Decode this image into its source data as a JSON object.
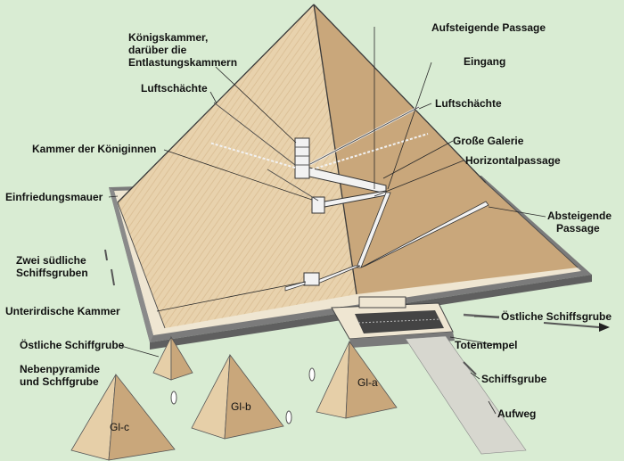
{
  "colors": {
    "background": "#d9ecd3",
    "pyramid_left": "#e6cfa8",
    "pyramid_right": "#c9a77b",
    "enclosure": "#efe6d2",
    "wall": "#7b7b7b"
  },
  "labels": {
    "koenigskammer_1": "Königskammer,",
    "koenigskammer_2": "darüber die",
    "koenigskammer_3": "Entlastungskammern",
    "aufsteigende_passage": "Aufsteigende Passage",
    "eingang": "Eingang",
    "luftschaechte_left": "Luftschächte",
    "luftschaechte_right": "Luftschächte",
    "kammer_koeniginnen": "Kammer der Königinnen",
    "grosse_galerie": "Große Galerie",
    "horizontalpassage": "Horizontalpassage",
    "einfriedungsmauer": "Einfriedungsmauer",
    "absteigende_1": "Absteigende",
    "absteigende_2": "Passage",
    "schiffsgruben_sued_1": "Zwei südliche",
    "schiffsgruben_sued_2": "Schiffsgruben",
    "unterirdische_kammer": "Unterirdische Kammer",
    "oestliche_schiffsgrube": "Östliche Schiffsgrube",
    "oestliche_schiffgrube": "Östliche Schiffgrube",
    "nebenpyramide_1": "Nebenpyramide",
    "nebenpyramide_2": "und Schffgrube",
    "totentempel": "Totentempel",
    "schiffsgrube": "Schiffsgrube",
    "aufweg": "Aufweg"
  },
  "pyramids": {
    "gl_a": "Gl-a",
    "gl_b": "Gl-b",
    "gl_c": "Gl-c"
  }
}
